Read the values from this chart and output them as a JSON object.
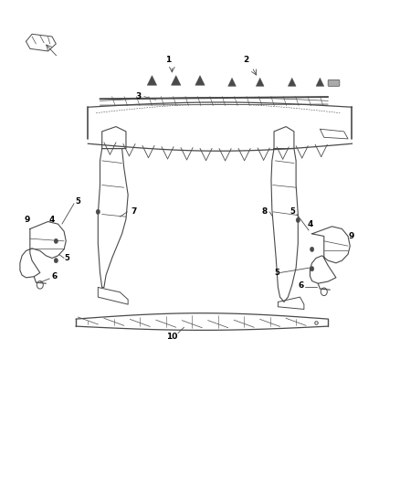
{
  "bg_color": "#ffffff",
  "line_color": "#4a4a4a",
  "fig_width": 4.38,
  "fig_height": 5.33,
  "dpi": 100
}
